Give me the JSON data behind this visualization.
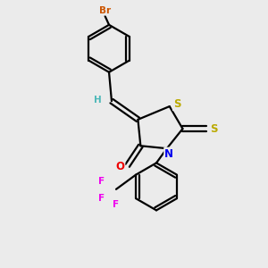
{
  "background_color": "#ebebeb",
  "atom_colors": {
    "C": "#000000",
    "H": "#4db8b8",
    "N": "#0000ee",
    "O": "#ee0000",
    "S": "#bbaa00",
    "Br": "#cc5500",
    "F": "#ee00ee"
  },
  "figsize": [
    3.0,
    3.0
  ],
  "dpi": 100
}
